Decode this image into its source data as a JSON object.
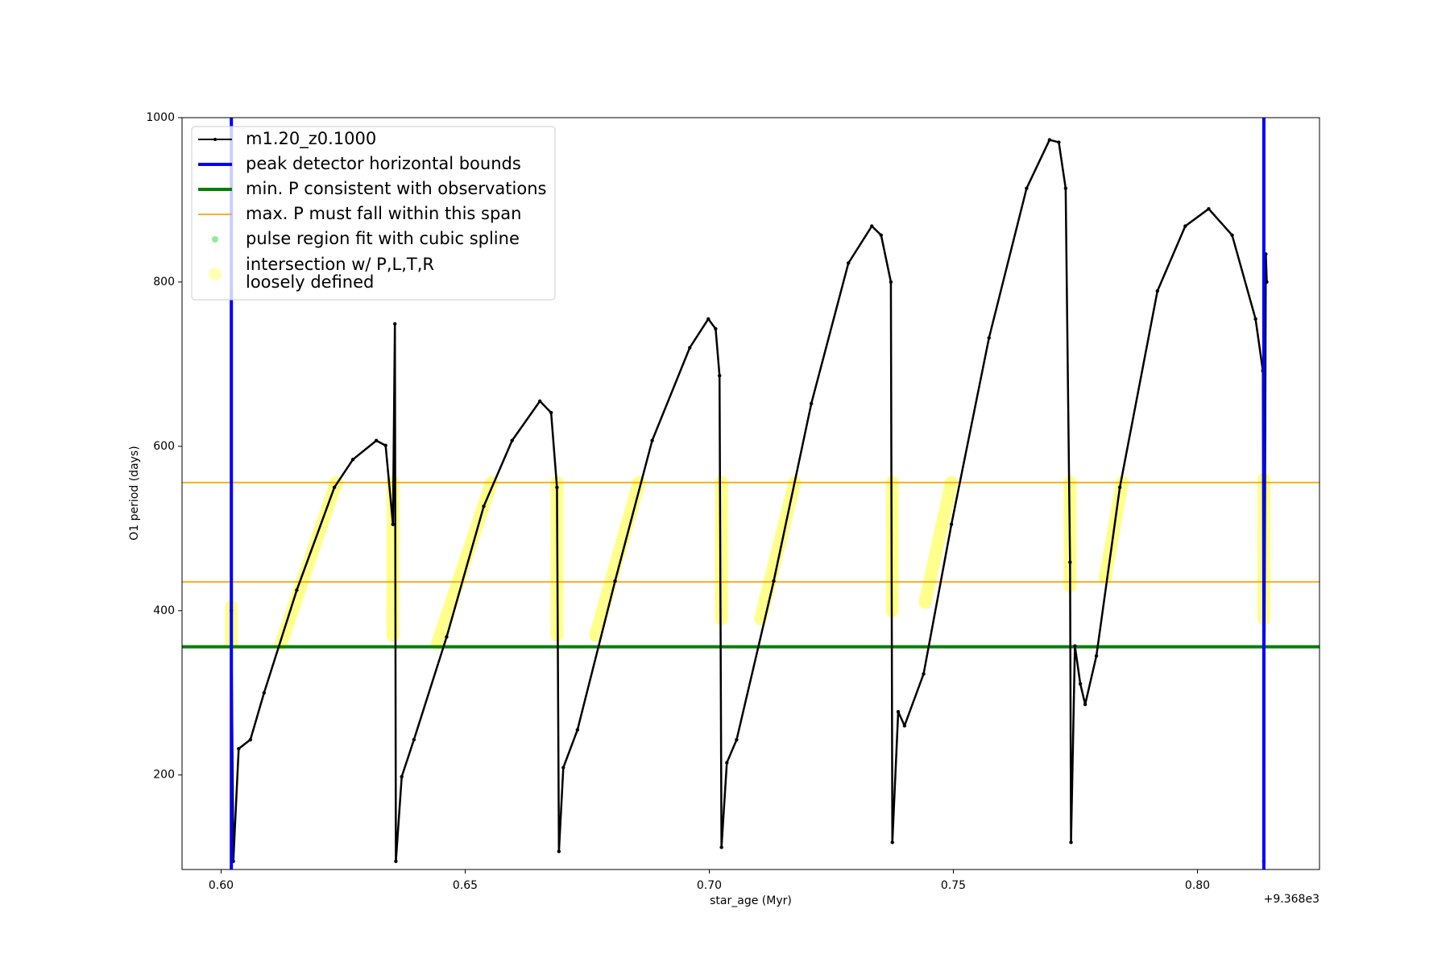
{
  "chart_data": {
    "type": "line",
    "x_label": "star_age (Myr)",
    "y_label": "O1 period (days)",
    "x_offset_label": "+9.368e3",
    "xlim": [
      0.592,
      0.825
    ],
    "ylim": [
      85,
      1000
    ],
    "xticks": [
      {
        "value": 0.6,
        "label": "0.60"
      },
      {
        "value": 0.65,
        "label": "0.65"
      },
      {
        "value": 0.7,
        "label": "0.70"
      },
      {
        "value": 0.75,
        "label": "0.75"
      },
      {
        "value": 0.8,
        "label": "0.80"
      }
    ],
    "yticks": [
      200,
      400,
      600,
      800,
      1000
    ],
    "legend": "upper left",
    "series": [
      {
        "name": "m1.20_z0.1000",
        "color": "#000000",
        "kind": "line",
        "x": [
          0.6021,
          0.6025,
          0.6036,
          0.606,
          0.6088,
          0.6155,
          0.6232,
          0.627,
          0.6318,
          0.6337,
          0.6352,
          0.6356,
          0.6358,
          0.637,
          0.6395,
          0.6462,
          0.6538,
          0.6596,
          0.6653,
          0.6676,
          0.6688,
          0.6692,
          0.6701,
          0.673,
          0.6807,
          0.6883,
          0.696,
          0.6998,
          0.7013,
          0.7021,
          0.7025,
          0.7036,
          0.7056,
          0.7132,
          0.7209,
          0.7285,
          0.7333,
          0.7352,
          0.7372,
          0.7375,
          0.7387,
          0.74,
          0.7439,
          0.7496,
          0.7573,
          0.765,
          0.7697,
          0.7716,
          0.773,
          0.7739,
          0.7741,
          0.7749,
          0.776,
          0.777,
          0.7793,
          0.7841,
          0.7918,
          0.7975,
          0.8023,
          0.8071,
          0.8119,
          0.8134,
          0.8136,
          0.814,
          0.8142
        ],
        "values": [
          400,
          95,
          232,
          243,
          300,
          425,
          550,
          584,
          607,
          601,
          505,
          749,
          95,
          198,
          243,
          368,
          527,
          607,
          655,
          641,
          550,
          107,
          209,
          255,
          436,
          607,
          720,
          755,
          743,
          686,
          112,
          215,
          243,
          436,
          652,
          823,
          868,
          857,
          800,
          118,
          277,
          260,
          323,
          505,
          732,
          914,
          973,
          970,
          914,
          459,
          118,
          357,
          311,
          286,
          345,
          550,
          789,
          868,
          889,
          857,
          755,
          692,
          95,
          834,
          800
        ]
      },
      {
        "name": "peak detector horizontal bounds",
        "color": "#0000ff",
        "kind": "vline",
        "x": [
          0.6021,
          0.8136
        ]
      },
      {
        "name": "min. P consistent with observations",
        "color": "#008000",
        "kind": "hline",
        "values": [
          356
        ]
      },
      {
        "name": "max. P must fall within this span",
        "color": "#ffa500",
        "kind": "hline",
        "values": [
          435,
          556
        ]
      },
      {
        "name": "pulse region fit with cubic spline",
        "color": "#90ee90",
        "kind": "scatter",
        "x": [],
        "values": []
      },
      {
        "name": "intersection w/ P,L,T,R\nloosely defined",
        "color": "#ffff00",
        "kind": "band",
        "x": [
          0.6021,
          0.6021,
          null,
          0.6123,
          0.6236,
          null,
          0.6352,
          0.6352,
          null,
          0.6443,
          0.6554,
          null,
          0.6688,
          0.6688,
          null,
          0.6767,
          0.6856,
          null,
          0.7025,
          0.7025,
          null,
          0.7105,
          0.7175,
          null,
          0.7375,
          0.7375,
          null,
          0.7442,
          0.7496,
          null,
          0.7739,
          0.7739,
          null,
          0.7811,
          0.7846,
          null,
          0.8136,
          0.8136
        ],
        "values": [
          360,
          405,
          null,
          360,
          556,
          null,
          370,
          556,
          null,
          360,
          556,
          null,
          370,
          556,
          null,
          370,
          556,
          null,
          390,
          556,
          null,
          390,
          556,
          null,
          400,
          556,
          null,
          410,
          556,
          null,
          430,
          556,
          null,
          440,
          556,
          null,
          390,
          560
        ]
      }
    ]
  }
}
